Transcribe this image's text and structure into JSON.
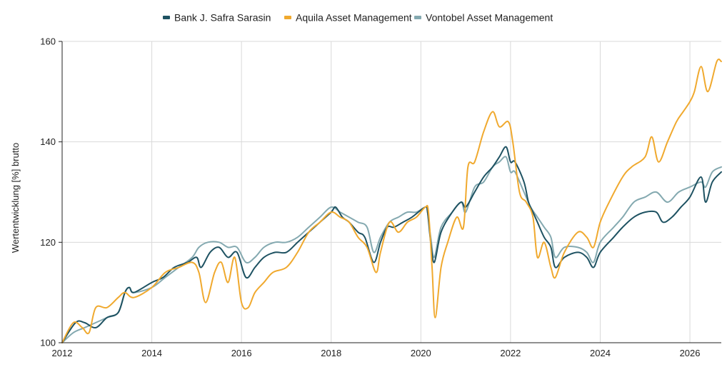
{
  "chart_data": {
    "type": "line",
    "title": "",
    "xlabel": "",
    "ylabel": "Wertentwicklung [%] brutto",
    "xlim": [
      2012,
      2026.7
    ],
    "ylim": [
      100,
      160
    ],
    "x_ticks": [
      "2012",
      "2014",
      "2016",
      "2018",
      "2020",
      "2022",
      "2024",
      "2026"
    ],
    "y_ticks": [
      "100",
      "120",
      "140",
      "160"
    ],
    "grid": "vertical",
    "legend_position": "top-center",
    "series": [
      {
        "name": "Bank J. Safra Sarasin",
        "color": "#1e5262",
        "x": [
          2012,
          2012.3,
          2012.5,
          2012.75,
          2013.0,
          2013.25,
          2013.4,
          2013.5,
          2013.6,
          2014.0,
          2014.25,
          2014.5,
          2014.8,
          2015.0,
          2015.1,
          2015.3,
          2015.5,
          2015.7,
          2015.9,
          2016.1,
          2016.3,
          2016.5,
          2016.75,
          2017.0,
          2017.25,
          2017.5,
          2017.75,
          2018.0,
          2018.1,
          2018.25,
          2018.4,
          2018.6,
          2018.75,
          2018.95,
          2019.1,
          2019.25,
          2019.4,
          2019.6,
          2019.8,
          2020.1,
          2020.15,
          2020.22,
          2020.3,
          2020.45,
          2020.7,
          2020.9,
          2021.0,
          2021.2,
          2021.4,
          2021.6,
          2021.75,
          2021.9,
          2022.0,
          2022.1,
          2022.3,
          2022.4,
          2022.5,
          2022.6,
          2022.75,
          2022.9,
          2023.0,
          2023.2,
          2023.5,
          2023.7,
          2023.85,
          2024.0,
          2024.3,
          2024.5,
          2024.75,
          2025.0,
          2025.25,
          2025.4,
          2025.6,
          2025.8,
          2026.0,
          2026.25,
          2026.35,
          2026.5,
          2026.7
        ],
        "values": [
          100,
          104,
          104,
          103,
          105,
          106,
          110,
          111,
          110,
          112,
          113,
          115,
          116,
          117,
          115,
          118,
          119,
          117,
          118,
          113,
          115,
          117,
          118,
          118,
          120,
          122,
          124,
          126,
          127,
          125,
          124,
          122,
          121,
          116,
          120,
          123,
          123,
          124,
          125,
          127,
          126,
          120,
          116,
          122,
          126,
          128,
          127,
          130,
          133,
          135,
          137,
          139,
          136,
          136,
          132,
          128,
          126,
          124,
          121,
          119,
          115,
          117,
          118,
          117,
          115,
          118,
          121,
          123,
          125,
          126,
          126,
          124,
          125,
          127,
          129,
          133,
          128,
          132,
          134
        ]
      },
      {
        "name": "Aquila Asset Management",
        "color": "#f0a92e",
        "x": [
          2012,
          2012.25,
          2012.45,
          2012.6,
          2012.75,
          2013.0,
          2013.25,
          2013.4,
          2013.6,
          2014.0,
          2014.3,
          2014.6,
          2014.9,
          2015.05,
          2015.2,
          2015.4,
          2015.55,
          2015.7,
          2015.85,
          2016.0,
          2016.15,
          2016.3,
          2016.5,
          2016.7,
          2017.0,
          2017.25,
          2017.5,
          2017.75,
          2018.0,
          2018.2,
          2018.4,
          2018.6,
          2018.8,
          2019.0,
          2019.1,
          2019.3,
          2019.5,
          2019.7,
          2019.9,
          2020.1,
          2020.17,
          2020.25,
          2020.32,
          2020.45,
          2020.6,
          2020.8,
          2020.95,
          2021.05,
          2021.2,
          2021.4,
          2021.6,
          2021.75,
          2021.95,
          2022.05,
          2022.2,
          2022.35,
          2022.5,
          2022.6,
          2022.75,
          2022.9,
          2023.0,
          2023.2,
          2023.5,
          2023.7,
          2023.85,
          2024.0,
          2024.2,
          2024.5,
          2024.7,
          2025.0,
          2025.15,
          2025.3,
          2025.5,
          2025.7,
          2025.85,
          2026.0,
          2026.1,
          2026.25,
          2026.4,
          2026.6,
          2026.7
        ],
        "values": [
          100,
          104,
          103,
          102,
          107,
          107,
          109,
          110,
          109,
          111,
          114,
          115,
          116,
          114,
          108,
          114,
          116,
          112,
          117,
          108,
          107,
          110,
          112,
          114,
          115,
          118,
          122,
          124,
          126,
          125,
          124,
          121,
          119,
          114,
          118,
          124,
          122,
          124,
          125,
          127,
          126,
          115,
          105,
          115,
          120,
          125,
          123,
          135,
          136,
          142,
          146,
          143,
          144,
          140,
          130,
          128,
          125,
          117,
          120,
          115,
          113,
          118,
          122,
          121,
          119,
          124,
          128,
          133,
          135,
          137,
          141,
          136,
          140,
          144,
          146,
          148,
          150,
          155,
          150,
          156,
          156
        ]
      },
      {
        "name": "Vontobel Asset Management",
        "color": "#84a9b0",
        "x": [
          2012,
          2012.25,
          2012.5,
          2012.75,
          2013.0,
          2013.25,
          2013.4,
          2013.5,
          2013.6,
          2014.0,
          2014.3,
          2014.6,
          2014.9,
          2015.05,
          2015.25,
          2015.5,
          2015.7,
          2015.9,
          2016.1,
          2016.3,
          2016.5,
          2016.75,
          2017.0,
          2017.25,
          2017.5,
          2017.75,
          2018.0,
          2018.2,
          2018.4,
          2018.6,
          2018.8,
          2018.95,
          2019.1,
          2019.3,
          2019.5,
          2019.7,
          2019.9,
          2020.1,
          2020.15,
          2020.22,
          2020.3,
          2020.45,
          2020.7,
          2020.9,
          2021.0,
          2021.2,
          2021.4,
          2021.6,
          2021.75,
          2021.9,
          2022.0,
          2022.1,
          2022.3,
          2022.45,
          2022.6,
          2022.75,
          2022.9,
          2023.0,
          2023.2,
          2023.5,
          2023.7,
          2023.85,
          2024.0,
          2024.3,
          2024.5,
          2024.75,
          2025.0,
          2025.25,
          2025.5,
          2025.75,
          2026.0,
          2026.25,
          2026.35,
          2026.5,
          2026.7
        ],
        "values": [
          100,
          102,
          103,
          104,
          105,
          106,
          110,
          111,
          110,
          111,
          113,
          115,
          117,
          119,
          120,
          120,
          119,
          119,
          116,
          117,
          119,
          120,
          120,
          121,
          123,
          125,
          127,
          126,
          125,
          124,
          123,
          118,
          121,
          124,
          125,
          126,
          126,
          127,
          126,
          121,
          117,
          123,
          126,
          128,
          126,
          131,
          132,
          135,
          136,
          137,
          134,
          134,
          130,
          127,
          125,
          123,
          121,
          117,
          119,
          119,
          118,
          116,
          120,
          123,
          125,
          128,
          129,
          130,
          128,
          130,
          131,
          132,
          131,
          134,
          135
        ]
      }
    ]
  }
}
